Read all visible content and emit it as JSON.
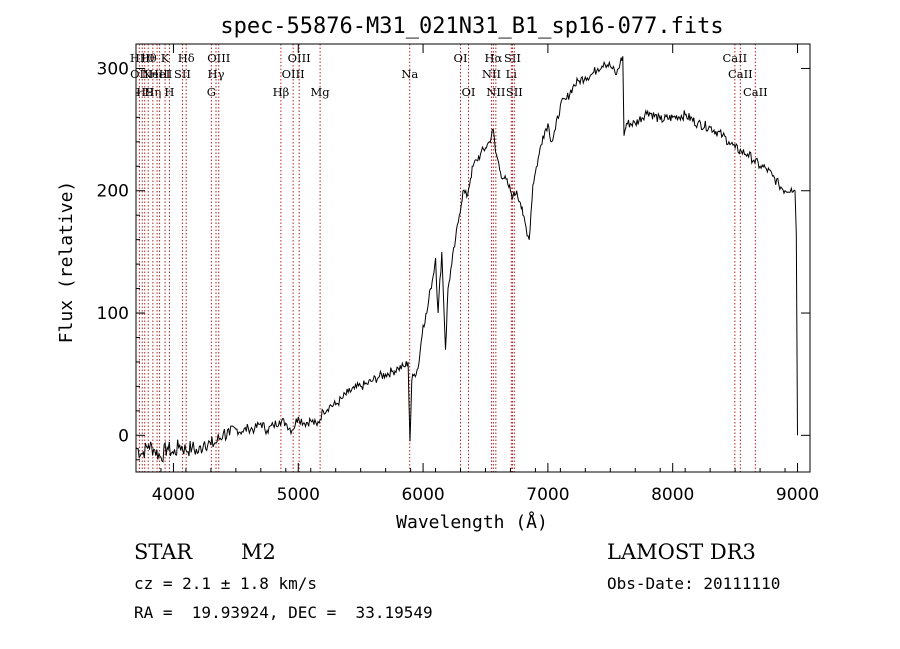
{
  "chart_data": {
    "type": "line",
    "title": "spec-55876-M31_021N31_B1_sp16-077.fits",
    "xlabel": "Wavelength (Å)",
    "ylabel": "Flux (relative)",
    "xlim": [
      3700,
      9100
    ],
    "ylim": [
      -30,
      320
    ],
    "xticks": [
      4000,
      5000,
      6000,
      7000,
      8000,
      9000
    ],
    "yticks": [
      0,
      100,
      200,
      300
    ],
    "grid": false,
    "line_color": "#000000",
    "marker_color": "#b22222",
    "series": [
      {
        "x": [
          3700,
          3750,
          3800,
          3850,
          3900,
          3950,
          4000,
          4050,
          4100,
          4150,
          4200,
          4250,
          4300,
          4350,
          4400,
          4450,
          4500,
          4550,
          4600,
          4650,
          4700,
          4750,
          4800,
          4850,
          4900,
          4950,
          5000,
          5050,
          5100,
          5150,
          5200,
          5250,
          5300,
          5350,
          5400,
          5450,
          5500,
          5550,
          5600,
          5650,
          5700,
          5750,
          5800,
          5850,
          5880,
          5895,
          5910,
          5930,
          5960,
          6000,
          6030,
          6060,
          6080,
          6100,
          6120,
          6150,
          6180,
          6200,
          6230,
          6260,
          6290,
          6320,
          6350,
          6380,
          6400,
          6430,
          6460,
          6500,
          6530,
          6563,
          6580,
          6600,
          6620,
          6650,
          6680,
          6700,
          6720,
          6750,
          6780,
          6800,
          6850,
          6880,
          6900,
          6930,
          6960,
          7000,
          7030,
          7060,
          7100,
          7150,
          7200,
          7250,
          7300,
          7350,
          7400,
          7450,
          7500,
          7550,
          7580,
          7600,
          7610,
          7630,
          7700,
          7800,
          7900,
          8000,
          8100,
          8200,
          8300,
          8400,
          8450,
          8500,
          8550,
          8600,
          8650,
          8700,
          8750,
          8800,
          8850,
          8900,
          8950,
          8980,
          8990,
          9000
        ],
        "y": [
          -10,
          -15,
          -8,
          -12,
          -18,
          -10,
          -15,
          -8,
          -12,
          -10,
          -14,
          -5,
          -8,
          -5,
          2,
          0,
          5,
          3,
          6,
          5,
          10,
          4,
          8,
          12,
          10,
          4,
          15,
          10,
          12,
          8,
          20,
          24,
          25,
          30,
          35,
          38,
          40,
          42,
          45,
          48,
          50,
          52,
          55,
          56,
          60,
          -5,
          45,
          50,
          55,
          90,
          100,
          120,
          130,
          145,
          100,
          150,
          70,
          120,
          140,
          160,
          180,
          200,
          195,
          210,
          220,
          225,
          230,
          235,
          240,
          250,
          232,
          225,
          215,
          210,
          205,
          200,
          195,
          200,
          190,
          180,
          160,
          205,
          215,
          230,
          245,
          255,
          240,
          250,
          270,
          275,
          285,
          290,
          293,
          295,
          300,
          305,
          302,
          295,
          305,
          310,
          245,
          255,
          255,
          265,
          258,
          260,
          262,
          255,
          252,
          245,
          240,
          235,
          232,
          230,
          225,
          220,
          218,
          212,
          205,
          200,
          202,
          200,
          165,
          0
        ]
      }
    ],
    "line_markers": [
      {
        "wavelength": 3727,
        "row": 1,
        "label": "OII"
      },
      {
        "wavelength": 3750,
        "row": 0,
        "label": "H10"
      },
      {
        "wavelength": 3770,
        "row": 2,
        "label": "H9"
      },
      {
        "wavelength": 3798,
        "row": 0,
        "label": "Hθ"
      },
      {
        "wavelength": 3835,
        "row": 2,
        "label": "Hη"
      },
      {
        "wavelength": 3869,
        "row": 1,
        "label": "NeIII"
      },
      {
        "wavelength": 3889,
        "row": 1,
        "label": "HeI"
      },
      {
        "wavelength": 3933,
        "row": 0,
        "label": "K"
      },
      {
        "wavelength": 3968,
        "row": 2,
        "label": "H"
      },
      {
        "wavelength": 4072,
        "row": 1,
        "label": "SII"
      },
      {
        "wavelength": 4102,
        "row": 0,
        "label": "Hδ"
      },
      {
        "wavelength": 4304,
        "row": 2,
        "label": "G"
      },
      {
        "wavelength": 4341,
        "row": 1,
        "label": "Hγ"
      },
      {
        "wavelength": 4363,
        "row": 0,
        "label": "OIII"
      },
      {
        "wavelength": 4861,
        "row": 2,
        "label": "Hβ"
      },
      {
        "wavelength": 4959,
        "row": 1,
        "label": "OIII"
      },
      {
        "wavelength": 5007,
        "row": 0,
        "label": "OIII"
      },
      {
        "wavelength": 5175,
        "row": 2,
        "label": "Mg"
      },
      {
        "wavelength": 5893,
        "row": 1,
        "label": "Na"
      },
      {
        "wavelength": 6300,
        "row": 0,
        "label": "OI"
      },
      {
        "wavelength": 6364,
        "row": 2,
        "label": "OI"
      },
      {
        "wavelength": 6548,
        "row": 1,
        "label": "NII"
      },
      {
        "wavelength": 6563,
        "row": 0,
        "label": "Hα"
      },
      {
        "wavelength": 6583,
        "row": 2,
        "label": "NII"
      },
      {
        "wavelength": 6707,
        "row": 1,
        "label": "Li"
      },
      {
        "wavelength": 6716,
        "row": 0,
        "label": "SII"
      },
      {
        "wavelength": 6731,
        "row": 2,
        "label": "SII"
      },
      {
        "wavelength": 8498,
        "row": 0,
        "label": "CaII"
      },
      {
        "wavelength": 8542,
        "row": 1,
        "label": "CaII"
      },
      {
        "wavelength": 8662,
        "row": 2,
        "label": "CaII"
      }
    ]
  },
  "info": {
    "class": "STAR",
    "subclass": "M2",
    "survey": "LAMOST DR3",
    "cz": "cz = 2.1 ± 1.8 km/s",
    "obs_date": "Obs-Date: 20111110",
    "radec": "RA =  19.93924, DEC =  33.19549"
  }
}
